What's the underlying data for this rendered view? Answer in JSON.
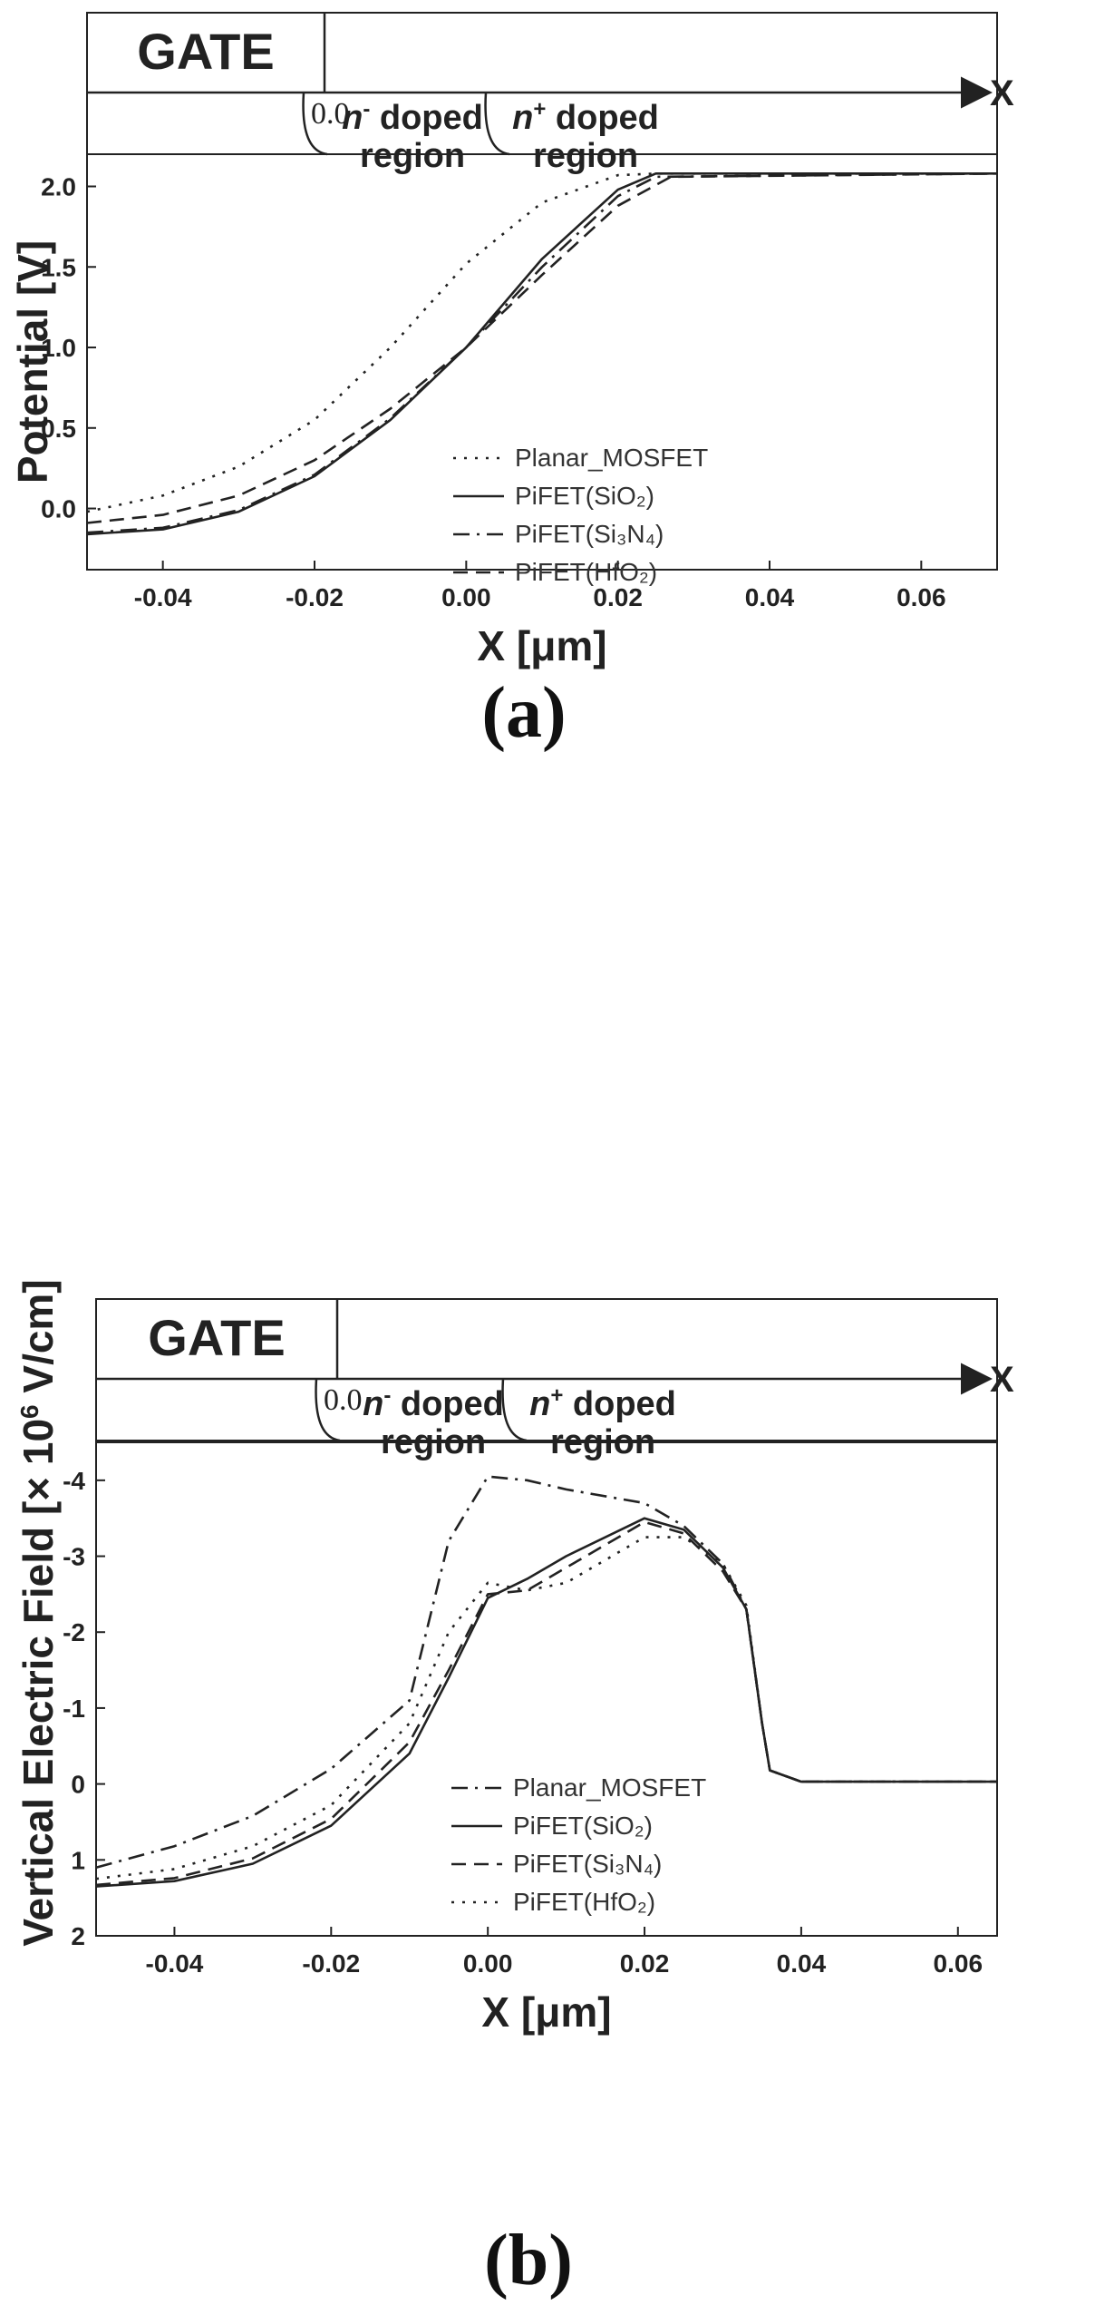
{
  "chart_data": [
    {
      "type": "line",
      "panel_label": "(a)",
      "xlabel": "X [μm]",
      "ylabel": "Potential [V]",
      "xlim": [
        -0.05,
        0.07
      ],
      "ylim": [
        -0.38,
        2.2
      ],
      "xticks": [
        "-0.04",
        "-0.02",
        "0.00",
        "0.02",
        "0.04",
        "0.06"
      ],
      "yticks": [
        "0.0",
        "0.5",
        "1.0",
        "1.5",
        "2.0"
      ],
      "inset": {
        "gate_label": "GATE",
        "zero_label": "0.0",
        "axis_letter": "X",
        "region1_line1": "n",
        "region1_sup": "-",
        "region1_word": " doped",
        "region1_line2": "region",
        "region2_line1": "n",
        "region2_sup": "+",
        "region2_word": " doped",
        "region2_line2": "region"
      },
      "legend": [
        "Planar_MOSFET",
        "PiFET(SiO₂)",
        "PiFET(Si₃N₄)",
        "PiFET(HfO₂)"
      ],
      "series": [
        {
          "name": "Planar_MOSFET",
          "style": "dotted",
          "x": [
            -0.05,
            -0.04,
            -0.03,
            -0.02,
            -0.01,
            0.0,
            0.01,
            0.02,
            0.025,
            0.07
          ],
          "y": [
            -0.02,
            0.08,
            0.26,
            0.55,
            1.0,
            1.52,
            1.9,
            2.07,
            2.08,
            2.08
          ]
        },
        {
          "name": "PiFET(SiO₂)",
          "style": "solid",
          "x": [
            -0.05,
            -0.04,
            -0.03,
            -0.02,
            -0.01,
            0.0,
            0.01,
            0.02,
            0.025,
            0.07
          ],
          "y": [
            -0.16,
            -0.13,
            -0.02,
            0.2,
            0.55,
            1.0,
            1.55,
            1.98,
            2.08,
            2.08
          ]
        },
        {
          "name": "PiFET(Si₃N₄)",
          "style": "dashdot",
          "x": [
            -0.05,
            -0.04,
            -0.03,
            -0.02,
            -0.01,
            0.0,
            0.01,
            0.02,
            0.025,
            0.07
          ],
          "y": [
            -0.15,
            -0.12,
            -0.01,
            0.21,
            0.56,
            1.0,
            1.5,
            1.94,
            2.06,
            2.08
          ]
        },
        {
          "name": "PiFET(HfO₂)",
          "style": "dashed",
          "x": [
            -0.05,
            -0.04,
            -0.03,
            -0.02,
            -0.01,
            0.0,
            0.01,
            0.02,
            0.027,
            0.07
          ],
          "y": [
            -0.09,
            -0.04,
            0.08,
            0.3,
            0.62,
            1.0,
            1.45,
            1.88,
            2.06,
            2.08
          ]
        }
      ]
    },
    {
      "type": "line",
      "panel_label": "(b)",
      "xlabel": "X [μm]",
      "ylabel_main": "Vertical Electric Field [× 10",
      "ylabel_sup": "6",
      "ylabel_tail": " V/cm]",
      "xlim": [
        -0.05,
        0.065
      ],
      "ylim": [
        2,
        -4.5
      ],
      "xticks": [
        "-0.04",
        "-0.02",
        "0.00",
        "0.02",
        "0.04",
        "0.06"
      ],
      "yticks": [
        "2",
        "1",
        "0",
        "-1",
        "-2",
        "-3",
        "-4"
      ],
      "inset": {
        "gate_label": "GATE",
        "zero_label": "0.0",
        "axis_letter": "X",
        "region1_line1": "n",
        "region1_sup": "-",
        "region1_word": " doped",
        "region1_line2": "region",
        "region2_line1": "n",
        "region2_sup": "+",
        "region2_word": " doped",
        "region2_line2": "region"
      },
      "legend": [
        "Planar_MOSFET",
        "PiFET(SiO₂)",
        "PiFET(Si₃N₄)",
        "PiFET(HfO₂)"
      ],
      "series": [
        {
          "name": "Planar_MOSFET",
          "style": "dashdot",
          "x": [
            -0.05,
            -0.04,
            -0.03,
            -0.02,
            -0.01,
            -0.005,
            0.0,
            0.005,
            0.01,
            0.02,
            0.025,
            0.03,
            0.033,
            0.035,
            0.036,
            0.04,
            0.065
          ],
          "y": [
            1.1,
            0.82,
            0.42,
            -0.2,
            -1.1,
            -3.2,
            -4.05,
            -4.0,
            -3.88,
            -3.7,
            -3.4,
            -2.9,
            -2.3,
            -0.8,
            -0.18,
            -0.03,
            -0.03
          ]
        },
        {
          "name": "PiFET(SiO₂)",
          "style": "solid",
          "x": [
            -0.05,
            -0.04,
            -0.03,
            -0.02,
            -0.01,
            -0.005,
            0.0,
            0.005,
            0.01,
            0.02,
            0.025,
            0.03,
            0.033,
            0.035,
            0.036,
            0.04,
            0.065
          ],
          "y": [
            1.35,
            1.28,
            1.05,
            0.55,
            -0.4,
            -1.4,
            -2.45,
            -2.7,
            -3.0,
            -3.5,
            -3.35,
            -2.85,
            -2.3,
            -0.8,
            -0.18,
            -0.03,
            -0.03
          ]
        },
        {
          "name": "PiFET(Si₃N₄)",
          "style": "dashed",
          "x": [
            -0.05,
            -0.04,
            -0.03,
            -0.02,
            -0.01,
            -0.005,
            0.0,
            0.005,
            0.01,
            0.02,
            0.025,
            0.03,
            0.033,
            0.035,
            0.036,
            0.04,
            0.065
          ],
          "y": [
            1.33,
            1.24,
            0.98,
            0.46,
            -0.55,
            -1.5,
            -2.5,
            -2.55,
            -2.85,
            -3.45,
            -3.3,
            -2.8,
            -2.3,
            -0.8,
            -0.18,
            -0.03,
            -0.03
          ]
        },
        {
          "name": "PiFET(HfO₂)",
          "style": "dotted",
          "x": [
            -0.05,
            -0.04,
            -0.03,
            -0.02,
            -0.01,
            -0.005,
            0.0,
            0.005,
            0.01,
            0.02,
            0.025,
            0.03,
            0.033,
            0.035,
            0.036,
            0.04,
            0.065
          ],
          "y": [
            1.25,
            1.12,
            0.82,
            0.28,
            -0.8,
            -2.0,
            -2.65,
            -2.55,
            -2.65,
            -3.25,
            -3.25,
            -2.9,
            -2.35,
            -0.8,
            -0.18,
            -0.03,
            -0.03
          ]
        }
      ]
    }
  ]
}
